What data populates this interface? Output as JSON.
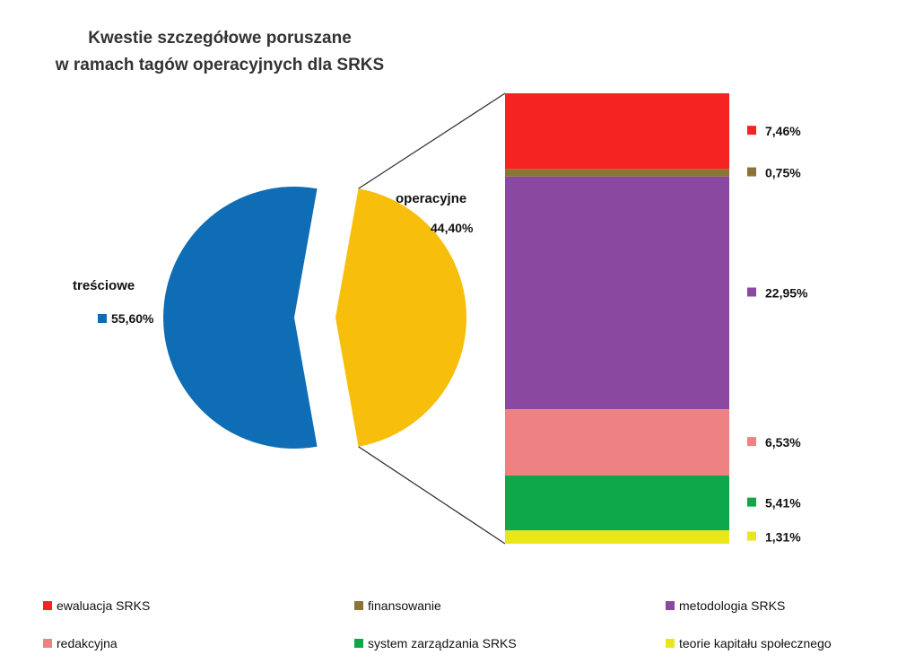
{
  "chart_data": {
    "type": "pie-of-bar",
    "title": [
      "Kwestie szczegółowe poruszane",
      "w ramach tagów operacyjnych dla SRKS"
    ],
    "pie": {
      "slices": [
        {
          "name": "treściowe",
          "value": 55.6,
          "label": "55,60%",
          "color": "#0F6DB5"
        },
        {
          "name": "operacyjne",
          "value": 44.4,
          "label": "44,40%",
          "color": "#F7BF0B"
        }
      ]
    },
    "bar": {
      "parent": "operacyjne",
      "segments": [
        {
          "name": "ewaluacja SRKS",
          "value": 7.46,
          "label": "7,46%",
          "color": "#F52322"
        },
        {
          "name": "finansowanie",
          "value": 0.75,
          "label": "0,75%",
          "color": "#8A7535"
        },
        {
          "name": "metodologia SRKS",
          "value": 22.95,
          "label": "22,95%",
          "color": "#8A48A0"
        },
        {
          "name": "redakcyjna",
          "value": 6.53,
          "label": "6,53%",
          "color": "#EE8282"
        },
        {
          "name": "system zarządzania SRKS",
          "value": 5.41,
          "label": "5,41%",
          "color": "#0EA74A"
        },
        {
          "name": "teorie kapitału społecznego",
          "value": 1.31,
          "label": "1,31%",
          "color": "#EBE618"
        }
      ]
    },
    "legend": {
      "position": "bottom",
      "entries": [
        "ewaluacja SRKS",
        "finansowanie",
        "metodologia SRKS",
        "redakcyjna",
        "system zarządzania SRKS",
        "teorie kapitału społecznego"
      ]
    },
    "connector_color": "#333333"
  }
}
